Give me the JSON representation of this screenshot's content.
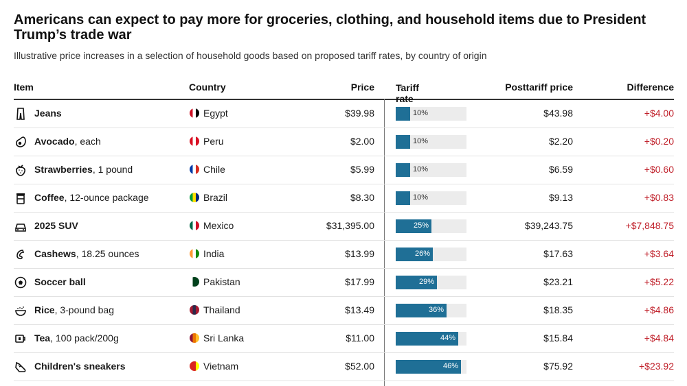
{
  "title": "Americans can expect to pay more for groceries, clothing, and household items due to President Trump’s trade war",
  "subtitle": "Illustrative price increases in a selection of household goods based on proposed tariff rates, by country of origin",
  "header": {
    "item": "Item",
    "country": "Country",
    "price": "Price",
    "tariff": "Tariff rate",
    "post": "Posttariff price",
    "diff": "Difference"
  },
  "colors": {
    "bar": "#1f6f96",
    "bar_track": "#ececec",
    "difference": "#c0202a"
  },
  "chart_data": {
    "type": "table",
    "columns": [
      "Item",
      "Country",
      "Price",
      "Tariff rate",
      "Posttariff price",
      "Difference"
    ],
    "bar_column": "Tariff rate",
    "rows": [
      {
        "icon": "jeans-icon",
        "name": "Jeans",
        "detail": "",
        "country": "Egypt",
        "flag": [
          "#ce1126",
          "#ffffff",
          "#000000"
        ],
        "price": "$39.98",
        "tariff": 10,
        "tariff_label": "10%",
        "post": "$43.98",
        "diff": "+$4.00"
      },
      {
        "icon": "avocado-icon",
        "name": "Avocado",
        "detail": ", each",
        "country": "Peru",
        "flag": [
          "#d91023",
          "#ffffff",
          "#d91023"
        ],
        "price": "$2.00",
        "tariff": 10,
        "tariff_label": "10%",
        "post": "$2.20",
        "diff": "+$0.20"
      },
      {
        "icon": "strawberry-icon",
        "name": "Strawberries",
        "detail": ", 1 pound",
        "country": "Chile",
        "flag": [
          "#0039a6",
          "#ffffff",
          "#d52b1e"
        ],
        "price": "$5.99",
        "tariff": 10,
        "tariff_label": "10%",
        "post": "$6.59",
        "diff": "+$0.60"
      },
      {
        "icon": "coffee-icon",
        "name": "Coffee",
        "detail": ", 12-ounce package",
        "country": "Brazil",
        "flag": [
          "#009c3b",
          "#ffdf00",
          "#002776"
        ],
        "price": "$8.30",
        "tariff": 10,
        "tariff_label": "10%",
        "post": "$9.13",
        "diff": "+$0.83"
      },
      {
        "icon": "car-icon",
        "name": "2025 SUV",
        "detail": "",
        "country": "Mexico",
        "flag": [
          "#006847",
          "#ffffff",
          "#ce1126"
        ],
        "price": "$31,395.00",
        "tariff": 25,
        "tariff_label": "25%",
        "post": "$39,243.75",
        "diff": "+$7,848.75"
      },
      {
        "icon": "cashew-icon",
        "name": "Cashews",
        "detail": ", 18.25 ounces",
        "country": "India",
        "flag": [
          "#ff9933",
          "#ffffff",
          "#138808"
        ],
        "price": "$13.99",
        "tariff": 26,
        "tariff_label": "26%",
        "post": "$17.63",
        "diff": "+$3.64"
      },
      {
        "icon": "soccer-ball-icon",
        "name": "Soccer ball",
        "detail": "",
        "country": "Pakistan",
        "flag": [
          "#ffffff",
          "#01411c",
          "#01411c"
        ],
        "price": "$17.99",
        "tariff": 29,
        "tariff_label": "29%",
        "post": "$23.21",
        "diff": "+$5.22"
      },
      {
        "icon": "rice-bowl-icon",
        "name": "Rice",
        "detail": ", 3-pound bag",
        "country": "Thailand",
        "flag": [
          "#a51931",
          "#2d2a4a",
          "#a51931"
        ],
        "price": "$13.49",
        "tariff": 36,
        "tariff_label": "36%",
        "post": "$18.35",
        "diff": "+$4.86"
      },
      {
        "icon": "tea-icon",
        "name": "Tea",
        "detail": ", 100 pack/200g",
        "country": "Sri Lanka",
        "flag": [
          "#8d153a",
          "#eb7400",
          "#ffbe29"
        ],
        "price": "$11.00",
        "tariff": 44,
        "tariff_label": "44%",
        "post": "$15.84",
        "diff": "+$4.84"
      },
      {
        "icon": "sneaker-icon",
        "name": "Children's sneakers",
        "detail": "",
        "country": "Vietnam",
        "flag": [
          "#da251d",
          "#da251d",
          "#ffff00"
        ],
        "price": "$52.00",
        "tariff": 46,
        "tariff_label": "46%",
        "post": "$75.92",
        "diff": "+$23.92"
      }
    ]
  }
}
